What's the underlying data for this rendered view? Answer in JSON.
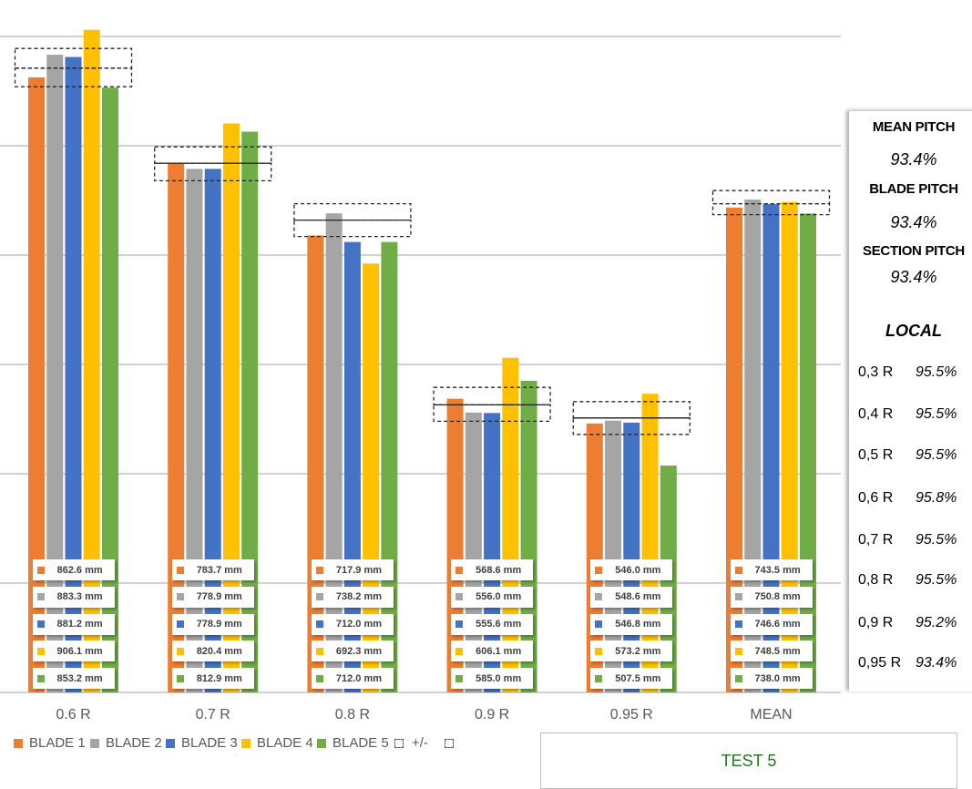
{
  "chart_data": {
    "type": "bar",
    "title": "",
    "xlabel": "",
    "ylabel": "",
    "categories": [
      "0.6 R",
      "0.7 R",
      "0.8 R",
      "0.9 R",
      "0.95 R",
      "MEAN"
    ],
    "value_unit": "mm",
    "series": [
      {
        "name": "BLADE 1",
        "color": "#ED7D31",
        "values": [
          862.6,
          783.7,
          717.9,
          568.6,
          546.0,
          743.5
        ]
      },
      {
        "name": "BLADE 2",
        "color": "#A5A5A5",
        "values": [
          883.3,
          778.9,
          738.2,
          556.0,
          548.6,
          750.8
        ]
      },
      {
        "name": "BLADE 3",
        "color": "#4472C4",
        "values": [
          881.2,
          778.9,
          712.0,
          555.6,
          546.8,
          746.6
        ]
      },
      {
        "name": "BLADE 4",
        "color": "#FFC000",
        "values": [
          906.1,
          820.4,
          692.3,
          606.1,
          573.2,
          748.5
        ]
      },
      {
        "name": "BLADE 5",
        "color": "#70AD47",
        "values": [
          853.2,
          812.9,
          712.0,
          585.0,
          507.5,
          738.0
        ]
      }
    ],
    "tolerance_bands": [
      {
        "category": "0.6 R",
        "lower": 854,
        "center": 871,
        "upper": 889
      },
      {
        "category": "0.7 R",
        "lower": 768,
        "center": 784,
        "upper": 799
      },
      {
        "category": "0.8 R",
        "lower": 717,
        "center": 732,
        "upper": 747
      },
      {
        "category": "0.9 R",
        "lower": 548,
        "center": 563,
        "upper": 579
      },
      {
        "category": "0.95 R",
        "lower": 536,
        "center": 551,
        "upper": 566
      },
      {
        "category": "MEAN",
        "lower": 737,
        "center": 747,
        "upper": 759
      }
    ],
    "legend": [
      {
        "label": "BLADE 1",
        "marker": "square",
        "color": "#ED7D31"
      },
      {
        "label": "BLADE 2",
        "marker": "square",
        "color": "#A5A5A5"
      },
      {
        "label": "BLADE 3",
        "marker": "square",
        "color": "#4472C4"
      },
      {
        "label": "BLADE 4",
        "marker": "square",
        "color": "#FFC000"
      },
      {
        "label": "BLADE 5",
        "marker": "square",
        "color": "#70AD47"
      },
      {
        "label": "+/-",
        "marker": "dashed-box"
      },
      {
        "label": "",
        "marker": "dashed-box"
      }
    ],
    "legend_position": "bottom-left",
    "ylim": [
      300,
      933
    ],
    "y_major_unit": 100,
    "y_tick_labels_visible": false,
    "grid": true
  },
  "panel": {
    "summary": [
      {
        "label": "MEAN PITCH",
        "value": "93.4%"
      },
      {
        "label": "BLADE PITCH",
        "value": "93.4%"
      },
      {
        "label": "SECTION PITCH",
        "value": "93.4%"
      }
    ],
    "local_title": "LOCAL",
    "local": [
      {
        "label": "0,3 R",
        "value": "95.5%"
      },
      {
        "label": "0,4 R",
        "value": "95.5%"
      },
      {
        "label": "0,5 R",
        "value": "95.5%"
      },
      {
        "label": "0,6 R",
        "value": "95.8%"
      },
      {
        "label": "0,7 R",
        "value": "95.5%"
      },
      {
        "label": "0,8 R",
        "value": "95.5%"
      },
      {
        "label": "0,9 R",
        "value": "95.2%"
      },
      {
        "label": "0,95 R",
        "value": "93.4%"
      }
    ]
  },
  "test_box": {
    "title": "TEST 5"
  },
  "colors": {
    "gridline": "#B8B8B8",
    "tolerance_line": "#262626",
    "axis_text": "#595959",
    "data_label_text": "#404040",
    "test_title": "#1F7A1F"
  }
}
